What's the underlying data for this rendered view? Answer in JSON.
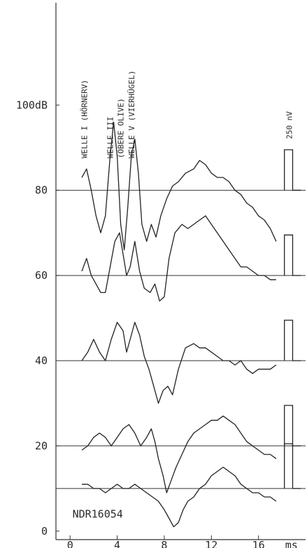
{
  "chart_data": {
    "type": "line",
    "x_unit": "ms",
    "x_ticks": [
      {
        "value": 0,
        "label": "0"
      },
      {
        "value": 4,
        "label": "4"
      },
      {
        "value": 8,
        "label": "8"
      },
      {
        "value": 12,
        "label": "12"
      },
      {
        "value": 16,
        "label": "16"
      }
    ],
    "xlim": [
      -1.2,
      20
    ],
    "y_ticks": [
      {
        "value": 0,
        "label": "0"
      },
      {
        "value": 20,
        "label": "20"
      },
      {
        "value": 40,
        "label": "40"
      },
      {
        "value": 60,
        "label": "60"
      },
      {
        "value": 80,
        "label": "80"
      },
      {
        "value": 100,
        "label": "100dB"
      }
    ],
    "ylim": [
      -2,
      124
    ],
    "wave_labels": [
      {
        "text": "WELLE I (HÖRNERV)",
        "x_ms": 1.2
      },
      {
        "text": "WELLE III",
        "x_ms": 3.4
      },
      {
        "text": "(OBERE OLIVE)",
        "x_ms": 4.3
      },
      {
        "text": "WELLE V (VIERHÜGEL)",
        "x_ms": 5.2
      }
    ],
    "scale_label": "250 nV",
    "scale_bar_height_nv": 250,
    "series_scale_db_per_nv": 0.038,
    "specimen_label": "NDR16054",
    "series": [
      {
        "level_db": 80,
        "calibration_pulse_db": 89.5,
        "points": [
          [
            1,
            83
          ],
          [
            1.4,
            85
          ],
          [
            1.8,
            80
          ],
          [
            2.2,
            74
          ],
          [
            2.6,
            70
          ],
          [
            3.0,
            74
          ],
          [
            3.4,
            88
          ],
          [
            3.7,
            96
          ],
          [
            4.0,
            88
          ],
          [
            4.3,
            72
          ],
          [
            4.6,
            66
          ],
          [
            4.9,
            76
          ],
          [
            5.2,
            88
          ],
          [
            5.5,
            92
          ],
          [
            5.8,
            84
          ],
          [
            6.1,
            72
          ],
          [
            6.5,
            68
          ],
          [
            6.9,
            72
          ],
          [
            7.3,
            69
          ],
          [
            7.7,
            74
          ],
          [
            8.2,
            78
          ],
          [
            8.7,
            81
          ],
          [
            9.2,
            82
          ],
          [
            9.8,
            84
          ],
          [
            10.5,
            85
          ],
          [
            11.0,
            87
          ],
          [
            11.5,
            86
          ],
          [
            12.0,
            84
          ],
          [
            12.5,
            83
          ],
          [
            13.0,
            83
          ],
          [
            13.5,
            82
          ],
          [
            14.0,
            80
          ],
          [
            14.5,
            79
          ],
          [
            15.0,
            77
          ],
          [
            15.5,
            76
          ],
          [
            16.0,
            74
          ],
          [
            16.5,
            73
          ],
          [
            17.0,
            71
          ],
          [
            17.5,
            68
          ]
        ]
      },
      {
        "level_db": 60,
        "calibration_pulse_db": 69.5,
        "points": [
          [
            1,
            61
          ],
          [
            1.4,
            64
          ],
          [
            1.8,
            60
          ],
          [
            2.2,
            58
          ],
          [
            2.6,
            56
          ],
          [
            3.0,
            56
          ],
          [
            3.4,
            62
          ],
          [
            3.8,
            68
          ],
          [
            4.2,
            70
          ],
          [
            4.5,
            65
          ],
          [
            4.8,
            60
          ],
          [
            5.1,
            62
          ],
          [
            5.5,
            68
          ],
          [
            5.9,
            61
          ],
          [
            6.3,
            57
          ],
          [
            6.8,
            56
          ],
          [
            7.2,
            58
          ],
          [
            7.6,
            54
          ],
          [
            8.0,
            55
          ],
          [
            8.4,
            64
          ],
          [
            8.9,
            70
          ],
          [
            9.5,
            72
          ],
          [
            10.0,
            71
          ],
          [
            10.5,
            72
          ],
          [
            11.0,
            73
          ],
          [
            11.5,
            74
          ],
          [
            12.0,
            72
          ],
          [
            12.5,
            70
          ],
          [
            13.0,
            68
          ],
          [
            13.5,
            66
          ],
          [
            14.0,
            64
          ],
          [
            14.5,
            62
          ],
          [
            15.0,
            62
          ],
          [
            15.5,
            61
          ],
          [
            16.0,
            60
          ],
          [
            16.5,
            60
          ],
          [
            17.0,
            59
          ],
          [
            17.5,
            59
          ]
        ]
      },
      {
        "level_db": 40,
        "calibration_pulse_db": 49.5,
        "points": [
          [
            1,
            40
          ],
          [
            1.5,
            42
          ],
          [
            2.0,
            45
          ],
          [
            2.5,
            42
          ],
          [
            3.0,
            40
          ],
          [
            3.5,
            45
          ],
          [
            4.0,
            49
          ],
          [
            4.5,
            47
          ],
          [
            4.8,
            42
          ],
          [
            5.1,
            45
          ],
          [
            5.5,
            49
          ],
          [
            5.9,
            46
          ],
          [
            6.3,
            41
          ],
          [
            6.7,
            38
          ],
          [
            7.1,
            34
          ],
          [
            7.5,
            30
          ],
          [
            7.9,
            33
          ],
          [
            8.3,
            34
          ],
          [
            8.7,
            32
          ],
          [
            9.2,
            38
          ],
          [
            9.8,
            43
          ],
          [
            10.5,
            44
          ],
          [
            11.0,
            43
          ],
          [
            11.5,
            43
          ],
          [
            12.0,
            42
          ],
          [
            12.5,
            41
          ],
          [
            13.0,
            40
          ],
          [
            13.5,
            40
          ],
          [
            14.0,
            39
          ],
          [
            14.5,
            40
          ],
          [
            15.0,
            38
          ],
          [
            15.5,
            37
          ],
          [
            16.0,
            38
          ],
          [
            16.5,
            38
          ],
          [
            17.0,
            38
          ],
          [
            17.5,
            39
          ]
        ]
      },
      {
        "level_db": 20,
        "calibration_pulse_db": 29.5,
        "points": [
          [
            1,
            19
          ],
          [
            1.5,
            20
          ],
          [
            2.0,
            22
          ],
          [
            2.5,
            23
          ],
          [
            3.0,
            22
          ],
          [
            3.5,
            20
          ],
          [
            4.0,
            22
          ],
          [
            4.5,
            24
          ],
          [
            5.0,
            25
          ],
          [
            5.5,
            23
          ],
          [
            6.0,
            20
          ],
          [
            6.5,
            22
          ],
          [
            6.9,
            24
          ],
          [
            7.2,
            21
          ],
          [
            7.5,
            17
          ],
          [
            7.9,
            13
          ],
          [
            8.2,
            9
          ],
          [
            8.6,
            12
          ],
          [
            9.0,
            15
          ],
          [
            9.5,
            18
          ],
          [
            10.0,
            21
          ],
          [
            10.5,
            23
          ],
          [
            11.0,
            24
          ],
          [
            11.5,
            25
          ],
          [
            12.0,
            26
          ],
          [
            12.5,
            26
          ],
          [
            13.0,
            27
          ],
          [
            13.5,
            26
          ],
          [
            14.0,
            25
          ],
          [
            14.5,
            23
          ],
          [
            15.0,
            21
          ],
          [
            15.5,
            20
          ],
          [
            16.0,
            19
          ],
          [
            16.5,
            18
          ],
          [
            17.0,
            18
          ],
          [
            17.5,
            17
          ]
        ]
      },
      {
        "level_db": 10,
        "calibration_pulse_db": 20.5,
        "points": [
          [
            1,
            11
          ],
          [
            1.5,
            11
          ],
          [
            2.0,
            10
          ],
          [
            2.5,
            10
          ],
          [
            3.0,
            9
          ],
          [
            3.5,
            10
          ],
          [
            4.0,
            11
          ],
          [
            4.5,
            10
          ],
          [
            5.0,
            10
          ],
          [
            5.5,
            11
          ],
          [
            6.0,
            10
          ],
          [
            6.5,
            9
          ],
          [
            7.0,
            8
          ],
          [
            7.5,
            7
          ],
          [
            8.0,
            5
          ],
          [
            8.4,
            3
          ],
          [
            8.8,
            1
          ],
          [
            9.2,
            2
          ],
          [
            9.6,
            5
          ],
          [
            10.0,
            7
          ],
          [
            10.5,
            8
          ],
          [
            11.0,
            10
          ],
          [
            11.5,
            11
          ],
          [
            12.0,
            13
          ],
          [
            12.5,
            14
          ],
          [
            13.0,
            15
          ],
          [
            13.5,
            14
          ],
          [
            14.0,
            13
          ],
          [
            14.5,
            11
          ],
          [
            15.0,
            10
          ],
          [
            15.5,
            9
          ],
          [
            16.0,
            9
          ],
          [
            16.5,
            8
          ],
          [
            17.0,
            8
          ],
          [
            17.5,
            7
          ]
        ]
      }
    ],
    "grid": false
  }
}
